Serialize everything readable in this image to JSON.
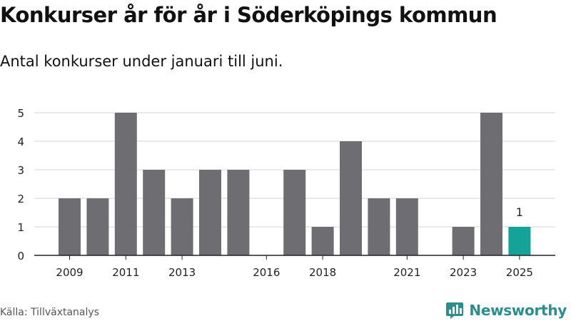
{
  "chart_data": {
    "type": "bar",
    "title": "Konkurser år för år i Söderköpings kommun",
    "subtitle": "Antal konkurser under januari till juni.",
    "categories": [
      "2009",
      "2010",
      "2011",
      "2012",
      "2013",
      "2014",
      "2015",
      "2016",
      "2017",
      "2018",
      "2019",
      "2020",
      "2021",
      "2022",
      "2023",
      "2024",
      "2025"
    ],
    "values": [
      2,
      2,
      5,
      3,
      2,
      3,
      3,
      0,
      3,
      1,
      4,
      2,
      2,
      0,
      1,
      5,
      1
    ],
    "x_tick_labels": [
      "2009",
      "2011",
      "2013",
      "2016",
      "2018",
      "2021",
      "2023",
      "2025"
    ],
    "y_ticks": [
      0,
      1,
      2,
      3,
      4,
      5
    ],
    "ylim": [
      0,
      5
    ],
    "xlabel": "",
    "ylabel": "",
    "grid": true,
    "annotations": [
      {
        "category": "2025",
        "text": "1"
      }
    ],
    "colors": {
      "bar": "#6e6d72",
      "highlight": "#14a399",
      "grid": "#d4d4d4",
      "axis": "#222222"
    }
  },
  "source": "Källa: Tillväxtanalys",
  "brand": {
    "name": "Newsworthy",
    "icon": "newsworthy-chart-icon",
    "color": "#2a8f8c"
  }
}
